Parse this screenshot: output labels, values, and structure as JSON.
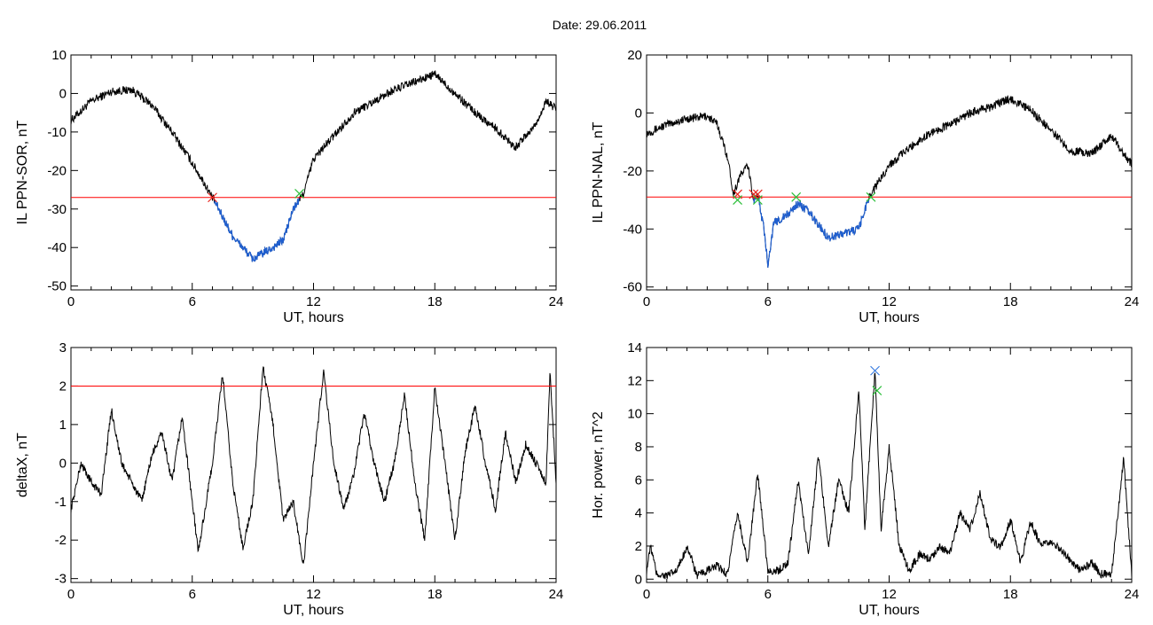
{
  "header": {
    "date_label": "Date:  29.06.2011"
  },
  "colors": {
    "threshold": "#ff0000",
    "trace": "#000000",
    "below": "#1f5fd0",
    "marker_red": "#e8251f",
    "marker_green": "#2cbf3a",
    "marker_blue": "#3a7de0"
  },
  "chart_data": [
    {
      "type": "line",
      "id": "sor",
      "xlabel": "UT, hours",
      "ylabel": "IL PPN-SOR, nT",
      "xlim": [
        0,
        24
      ],
      "ylim": [
        -51,
        10
      ],
      "xticks": [
        0,
        6,
        12,
        18,
        24
      ],
      "yticks": [
        -50,
        -40,
        -30,
        -20,
        -10,
        0,
        10
      ],
      "threshold": -27,
      "key_points": [
        [
          0,
          -7
        ],
        [
          1,
          -2
        ],
        [
          2,
          0.5
        ],
        [
          3,
          1
        ],
        [
          4,
          -3
        ],
        [
          5,
          -10
        ],
        [
          6,
          -18
        ],
        [
          7,
          -27
        ],
        [
          8,
          -37
        ],
        [
          9,
          -43
        ],
        [
          10,
          -40
        ],
        [
          10.5,
          -38
        ],
        [
          11,
          -30
        ],
        [
          11.5,
          -26
        ],
        [
          12,
          -17
        ],
        [
          13,
          -11
        ],
        [
          14,
          -5
        ],
        [
          15,
          -2
        ],
        [
          16,
          1
        ],
        [
          17,
          3
        ],
        [
          18,
          5
        ],
        [
          19,
          0
        ],
        [
          20,
          -5
        ],
        [
          21,
          -9
        ],
        [
          22,
          -14
        ],
        [
          23,
          -8
        ],
        [
          23.5,
          -2
        ],
        [
          24,
          -4
        ]
      ],
      "markers": [
        {
          "x": 7.0,
          "y": -27,
          "color": "red"
        },
        {
          "x": 11.3,
          "y": -26,
          "color": "green"
        }
      ]
    },
    {
      "type": "line",
      "id": "nal",
      "xlabel": "UT, hours",
      "ylabel": "IL PPN-NAL, nT",
      "xlim": [
        0,
        24
      ],
      "ylim": [
        -61,
        20
      ],
      "xticks": [
        0,
        6,
        12,
        18,
        24
      ],
      "yticks": [
        -60,
        -40,
        -20,
        0,
        20
      ],
      "threshold": -29,
      "key_points": [
        [
          0,
          -7
        ],
        [
          1,
          -4
        ],
        [
          2,
          -2
        ],
        [
          3,
          -1
        ],
        [
          3.5,
          -4
        ],
        [
          4,
          -15
        ],
        [
          4.3,
          -28
        ],
        [
          4.6,
          -22
        ],
        [
          5,
          -18
        ],
        [
          5.3,
          -30
        ],
        [
          5.5,
          -28
        ],
        [
          5.8,
          -40
        ],
        [
          6,
          -52
        ],
        [
          6.3,
          -38
        ],
        [
          7,
          -35
        ],
        [
          7.5,
          -31
        ],
        [
          8,
          -34
        ],
        [
          9,
          -43
        ],
        [
          10,
          -41
        ],
        [
          10.5,
          -40
        ],
        [
          11,
          -29
        ],
        [
          12,
          -18
        ],
        [
          13,
          -12
        ],
        [
          14,
          -7
        ],
        [
          15,
          -4
        ],
        [
          16,
          0
        ],
        [
          17,
          2
        ],
        [
          18,
          5
        ],
        [
          19,
          1
        ],
        [
          20,
          -6
        ],
        [
          21,
          -13
        ],
        [
          22,
          -14
        ],
        [
          23,
          -8
        ],
        [
          24,
          -18
        ]
      ],
      "markers": [
        {
          "x": 4.5,
          "y": -28,
          "color": "red"
        },
        {
          "x": 4.5,
          "y": -30,
          "color": "green"
        },
        {
          "x": 5.3,
          "y": -28,
          "color": "red"
        },
        {
          "x": 5.5,
          "y": -28,
          "color": "red"
        },
        {
          "x": 5.5,
          "y": -30,
          "color": "green"
        },
        {
          "x": 7.4,
          "y": -29,
          "color": "green"
        },
        {
          "x": 11.1,
          "y": -29,
          "color": "green"
        }
      ]
    },
    {
      "type": "line",
      "id": "deltax",
      "xlabel": "UT, hours",
      "ylabel": "deltaX, nT",
      "xlim": [
        0,
        24
      ],
      "ylim": [
        -3.1,
        3
      ],
      "xticks": [
        0,
        6,
        12,
        18,
        24
      ],
      "yticks": [
        -3,
        -2,
        -1,
        0,
        1,
        2,
        3
      ],
      "threshold": 2,
      "key_points": [
        [
          0,
          -1.2
        ],
        [
          0.5,
          0
        ],
        [
          1,
          -0.5
        ],
        [
          1.5,
          -0.8
        ],
        [
          2,
          1.4
        ],
        [
          2.5,
          0
        ],
        [
          3,
          -0.5
        ],
        [
          3.5,
          -1
        ],
        [
          4,
          0.2
        ],
        [
          4.5,
          0.8
        ],
        [
          5,
          -0.5
        ],
        [
          5.5,
          1.2
        ],
        [
          6,
          -1
        ],
        [
          6.3,
          -2.3
        ],
        [
          7,
          0
        ],
        [
          7.5,
          2.3
        ],
        [
          8,
          -0.5
        ],
        [
          8.5,
          -2.2
        ],
        [
          9,
          -1
        ],
        [
          9.5,
          2.5
        ],
        [
          10,
          1
        ],
        [
          10.5,
          -1.5
        ],
        [
          11,
          -1
        ],
        [
          11.5,
          -2.7
        ],
        [
          12,
          0
        ],
        [
          12.5,
          2.4
        ],
        [
          13,
          0
        ],
        [
          13.5,
          -1.2
        ],
        [
          14,
          -0.3
        ],
        [
          14.5,
          1.3
        ],
        [
          15,
          0
        ],
        [
          15.5,
          -1
        ],
        [
          16,
          0
        ],
        [
          16.5,
          1.8
        ],
        [
          17,
          -0.5
        ],
        [
          17.5,
          -2
        ],
        [
          18,
          2
        ],
        [
          18.5,
          0
        ],
        [
          19,
          -2
        ],
        [
          19.5,
          0.3
        ],
        [
          20,
          1.5
        ],
        [
          20.5,
          0
        ],
        [
          21,
          -1.2
        ],
        [
          21.5,
          0.8
        ],
        [
          22,
          -0.5
        ],
        [
          22.5,
          0.5
        ],
        [
          23,
          0
        ],
        [
          23.5,
          -0.5
        ],
        [
          23.7,
          2.4
        ],
        [
          24,
          -0.5
        ]
      ],
      "markers": []
    },
    {
      "type": "line",
      "id": "power",
      "xlabel": "UT, hours",
      "ylabel": "Hor. power, nT^2",
      "xlim": [
        0,
        24
      ],
      "ylim": [
        -0.2,
        14
      ],
      "xticks": [
        0,
        6,
        12,
        18,
        24
      ],
      "yticks": [
        0,
        2,
        4,
        6,
        8,
        10,
        12,
        14
      ],
      "threshold": null,
      "key_points": [
        [
          0,
          0.5
        ],
        [
          0.2,
          2
        ],
        [
          0.5,
          0.3
        ],
        [
          1,
          0.2
        ],
        [
          1.5,
          0.5
        ],
        [
          2,
          2
        ],
        [
          2.5,
          0.2
        ],
        [
          3,
          0.5
        ],
        [
          3.5,
          0.8
        ],
        [
          4,
          0.3
        ],
        [
          4.5,
          4
        ],
        [
          5,
          1
        ],
        [
          5.5,
          6.4
        ],
        [
          6,
          0.5
        ],
        [
          6.5,
          0.5
        ],
        [
          7,
          1
        ],
        [
          7.5,
          6
        ],
        [
          8,
          1.5
        ],
        [
          8.5,
          7.5
        ],
        [
          9,
          2
        ],
        [
          9.5,
          6
        ],
        [
          10,
          4
        ],
        [
          10.5,
          11.5
        ],
        [
          10.8,
          3
        ],
        [
          11,
          7
        ],
        [
          11.3,
          12.6
        ],
        [
          11.6,
          3
        ],
        [
          12,
          8
        ],
        [
          12.5,
          2
        ],
        [
          13,
          0.5
        ],
        [
          13.5,
          1.5
        ],
        [
          14,
          1.2
        ],
        [
          14.5,
          2
        ],
        [
          15,
          1.5
        ],
        [
          15.5,
          4
        ],
        [
          16,
          3
        ],
        [
          16.5,
          5.2
        ],
        [
          17,
          2.5
        ],
        [
          17.5,
          1.8
        ],
        [
          18,
          3.6
        ],
        [
          18.5,
          1
        ],
        [
          19,
          3.5
        ],
        [
          19.5,
          2
        ],
        [
          20,
          2.2
        ],
        [
          20.5,
          1.8
        ],
        [
          21,
          1
        ],
        [
          21.5,
          0.5
        ],
        [
          22,
          1
        ],
        [
          22.5,
          0.3
        ],
        [
          23,
          0.3
        ],
        [
          23.6,
          7.3
        ],
        [
          24,
          0.2
        ]
      ],
      "markers": [
        {
          "x": 11.3,
          "y": 12.6,
          "color": "blue"
        },
        {
          "x": 11.4,
          "y": 11.4,
          "color": "green"
        }
      ]
    }
  ]
}
